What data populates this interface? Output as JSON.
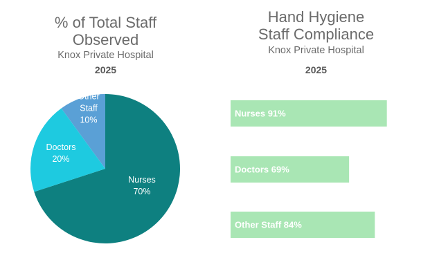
{
  "chart_data": [
    {
      "type": "pie",
      "title_line1": "% of Total Staff",
      "title_line2": "Observed",
      "subtitle": "Knox Private Hospital",
      "year": "2025",
      "slices": [
        {
          "label": "Nurses",
          "value": 70,
          "value_label": "70%",
          "color": "#0e8080"
        },
        {
          "label": "Other Staff",
          "label_line1": "Other",
          "label_line2": "Staff",
          "value": 10,
          "value_label": "10%",
          "color": "#5aa0d6"
        },
        {
          "label": "Doctors",
          "value": 20,
          "value_label": "20%",
          "color": "#1ecae0"
        }
      ]
    },
    {
      "type": "bar",
      "orientation": "horizontal",
      "title_line1": "Hand Hygiene",
      "title_line2": "Staff Compliance",
      "subtitle": "Knox Private Hospital",
      "year": "2025",
      "xlim": [
        0,
        100
      ],
      "bar_color": "#a9e6b4",
      "bars": [
        {
          "label": "Nurses 91%",
          "value": 91
        },
        {
          "label": "Doctors 69%",
          "value": 69
        },
        {
          "label": "Other Staff 84%",
          "value": 84
        }
      ]
    }
  ]
}
